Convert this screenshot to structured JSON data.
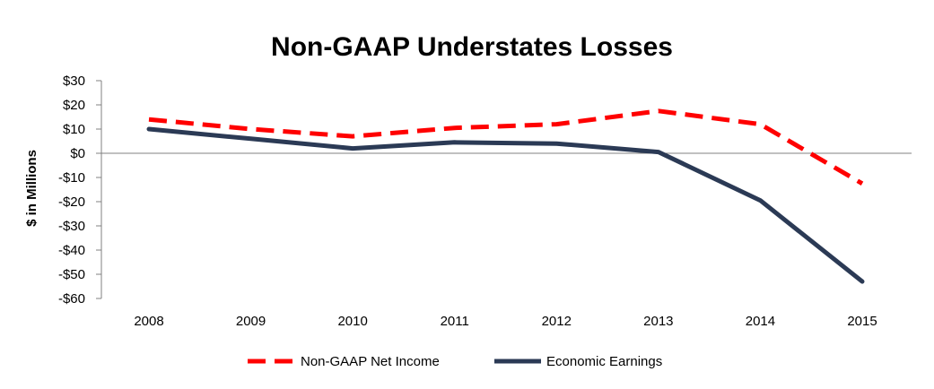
{
  "chart_data": {
    "type": "line",
    "title": "Non-GAAP Understates Losses",
    "xlabel": "",
    "ylabel": "$ in Millions",
    "x": [
      "2008",
      "2009",
      "2010",
      "2011",
      "2012",
      "2013",
      "2014",
      "2015"
    ],
    "ylim": [
      -60,
      30
    ],
    "yticks": [
      30,
      20,
      10,
      0,
      -10,
      -20,
      -30,
      -40,
      -50,
      -60
    ],
    "ytick_labels": [
      "$30",
      "$20",
      "$10",
      "$0",
      "-$10",
      "-$20",
      "-$30",
      "-$40",
      "-$50",
      "-$60"
    ],
    "grid": false,
    "legend": "bottom",
    "series": [
      {
        "name": "Non-GAAP Net Income",
        "values": [
          14,
          10,
          7,
          10.5,
          12,
          17.5,
          12,
          -12.5
        ],
        "color": "#ff0000",
        "style": "dashed"
      },
      {
        "name": "Economic Earnings",
        "values": [
          10,
          6,
          2,
          4.5,
          4,
          0.5,
          -19.5,
          -53
        ],
        "color": "#2b3a55",
        "style": "solid"
      }
    ]
  }
}
